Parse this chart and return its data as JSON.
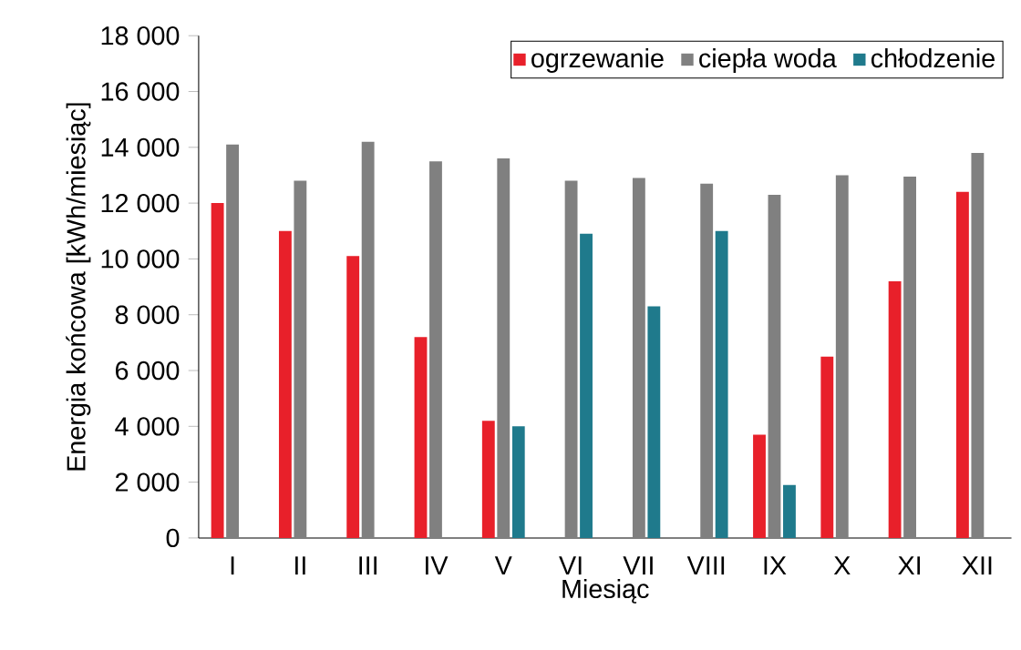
{
  "chart_data": {
    "type": "bar",
    "xlabel": "Miesiąc",
    "ylabel": "Energia końcowa [kWh/miesiąc]",
    "categories": [
      "I",
      "II",
      "III",
      "IV",
      "V",
      "VI",
      "VII",
      "VIII",
      "IX",
      "X",
      "XI",
      "XII"
    ],
    "series": [
      {
        "name": "ogrzewanie",
        "color": "#e8202a",
        "values": [
          12000,
          11000,
          10100,
          7200,
          4200,
          null,
          null,
          null,
          3700,
          6500,
          9200,
          12400
        ]
      },
      {
        "name": "ciepła woda",
        "color": "#808080",
        "values": [
          14100,
          12800,
          14200,
          13500,
          13600,
          12800,
          12900,
          12700,
          12300,
          13000,
          12950,
          13800
        ]
      },
      {
        "name": "chłodzenie",
        "color": "#1f7a8c",
        "values": [
          null,
          null,
          null,
          null,
          4000,
          10900,
          8300,
          11000,
          1900,
          null,
          null,
          null
        ]
      }
    ],
    "ylim": [
      0,
      18000
    ],
    "yticks": [
      {
        "value": 0,
        "label": "0"
      },
      {
        "value": 2000,
        "label": "2 000"
      },
      {
        "value": 4000,
        "label": "4 000"
      },
      {
        "value": 6000,
        "label": "6 000"
      },
      {
        "value": 8000,
        "label": "8 000"
      },
      {
        "value": 10000,
        "label": "10 000"
      },
      {
        "value": 12000,
        "label": "12 000"
      },
      {
        "value": 14000,
        "label": "14 000"
      },
      {
        "value": 16000,
        "label": "16 000"
      },
      {
        "value": 18000,
        "label": "18 000"
      }
    ],
    "legend": "top right",
    "grid": false
  }
}
